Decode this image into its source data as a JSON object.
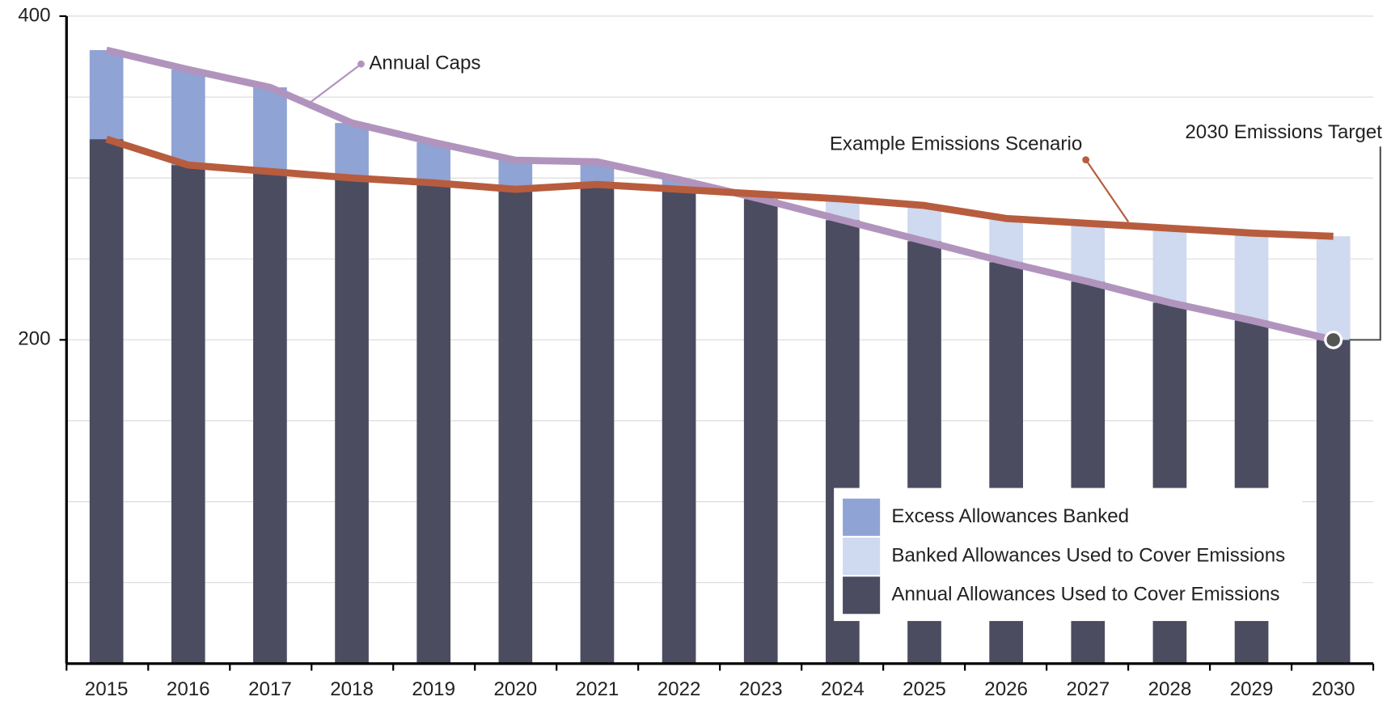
{
  "chart_data": {
    "type": "stacked-bar-line",
    "categories": [
      "2015",
      "2016",
      "2017",
      "2018",
      "2019",
      "2020",
      "2021",
      "2022",
      "2023",
      "2024",
      "2025",
      "2026",
      "2027",
      "2028",
      "2029",
      "2030"
    ],
    "series": [
      {
        "name": "Annual Allowances Used to Cover Emissions",
        "color": "#4b4c60",
        "kind": "bar",
        "values": [
          324,
          308,
          304,
          300,
          297,
          293,
          296,
          293,
          287,
          274,
          261,
          248,
          236,
          223,
          212,
          200
        ]
      },
      {
        "name": "Excess Allowances Banked",
        "color": "#8fa3d4",
        "kind": "bar",
        "values": [
          55,
          59,
          52,
          34,
          25,
          18,
          14,
          6,
          0,
          0,
          0,
          0,
          0,
          0,
          0,
          0
        ]
      },
      {
        "name": "Banked Allowances Used to Cover Emissions",
        "color": "#cfd9ef",
        "kind": "bar",
        "values": [
          0,
          0,
          0,
          0,
          0,
          0,
          0,
          0,
          3,
          13,
          22,
          27,
          36,
          46,
          54,
          64
        ]
      },
      {
        "name": "Annual Caps",
        "color": "#b194bd",
        "kind": "line",
        "values": [
          379,
          367,
          356,
          334,
          322,
          311,
          310,
          299,
          287,
          274,
          261,
          248,
          236,
          223,
          212,
          200
        ]
      },
      {
        "name": "Example Emissions Scenario",
        "color": "#b85c3e",
        "kind": "line",
        "values": [
          324,
          308,
          304,
          300,
          297,
          293,
          296,
          293,
          290,
          287,
          283,
          275,
          272,
          269,
          266,
          264
        ]
      }
    ],
    "annotations": [
      "Annual Caps",
      "Example Emissions Scenario",
      "2030 Emissions Target"
    ],
    "ylim": [
      0,
      400
    ],
    "yticks": [
      200,
      400
    ],
    "ygrid": [
      50,
      100,
      150,
      200,
      250,
      300,
      350,
      400
    ],
    "grid": true,
    "legend": "lower right"
  }
}
